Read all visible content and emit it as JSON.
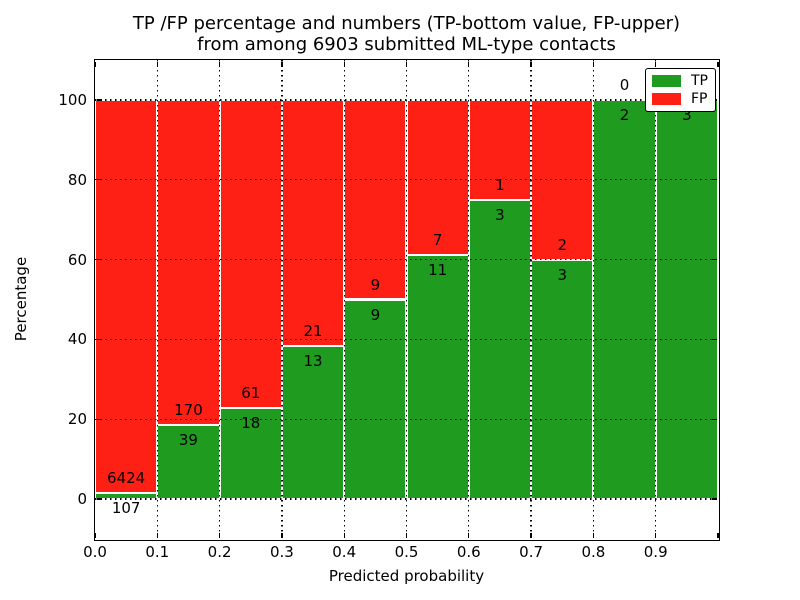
{
  "title": {
    "line1": "TP /FP percentage and numbers (TP-bottom value, FP-upper)",
    "line2": "from among 6903 submitted ML-type contacts"
  },
  "axes": {
    "xlabel": "Predicted probability",
    "ylabel": "Percentage",
    "x_tick_labels": [
      "0.0",
      "0.1",
      "0.2",
      "0.3",
      "0.4",
      "0.5",
      "0.6",
      "0.7",
      "0.8",
      "0.9"
    ],
    "y_tick_labels": [
      "0",
      "20",
      "40",
      "60",
      "80",
      "100"
    ]
  },
  "legend": {
    "entries": [
      {
        "label": "TP",
        "color": "#1f9b1f"
      },
      {
        "label": "FP",
        "color": "#ff2015"
      }
    ]
  },
  "colors": {
    "tp": "#1f9b1f",
    "fp": "#ff2015",
    "grid": "#000000",
    "spine": "#000000",
    "bar_edge": "#ffffff",
    "background": "#ffffff"
  },
  "chart_data": {
    "type": "bar",
    "stacked": true,
    "normalized_to": 100,
    "title": "TP /FP percentage and numbers (TP-bottom value, FP-upper) from among 6903 submitted ML-type contacts",
    "xlabel": "Predicted probability",
    "ylabel": "Percentage",
    "xlim": [
      0.0,
      1.0
    ],
    "ylim": [
      -10,
      110
    ],
    "x_ticks": [
      0.0,
      0.1,
      0.2,
      0.3,
      0.4,
      0.5,
      0.6,
      0.7,
      0.8,
      0.9,
      1.0
    ],
    "y_ticks": [
      0,
      20,
      40,
      60,
      80,
      100
    ],
    "grid": true,
    "legend_position": "upper right",
    "total_contacts": 6903,
    "series_order_note": "TP drawn from 0 (bottom), FP stacked above TP up to 100%",
    "bins": [
      {
        "x_range": [
          0.0,
          0.1
        ],
        "tp": 107,
        "fp": 6424
      },
      {
        "x_range": [
          0.1,
          0.2
        ],
        "tp": 39,
        "fp": 170
      },
      {
        "x_range": [
          0.2,
          0.3
        ],
        "tp": 18,
        "fp": 61
      },
      {
        "x_range": [
          0.3,
          0.4
        ],
        "tp": 13,
        "fp": 21
      },
      {
        "x_range": [
          0.4,
          0.5
        ],
        "tp": 9,
        "fp": 9
      },
      {
        "x_range": [
          0.5,
          0.6
        ],
        "tp": 11,
        "fp": 7
      },
      {
        "x_range": [
          0.6,
          0.7
        ],
        "tp": 3,
        "fp": 1
      },
      {
        "x_range": [
          0.7,
          0.8
        ],
        "tp": 3,
        "fp": 2
      },
      {
        "x_range": [
          0.8,
          0.9
        ],
        "tp": 2,
        "fp": 0
      },
      {
        "x_range": [
          0.9,
          1.0
        ],
        "tp": 3,
        "fp": 0
      }
    ]
  }
}
